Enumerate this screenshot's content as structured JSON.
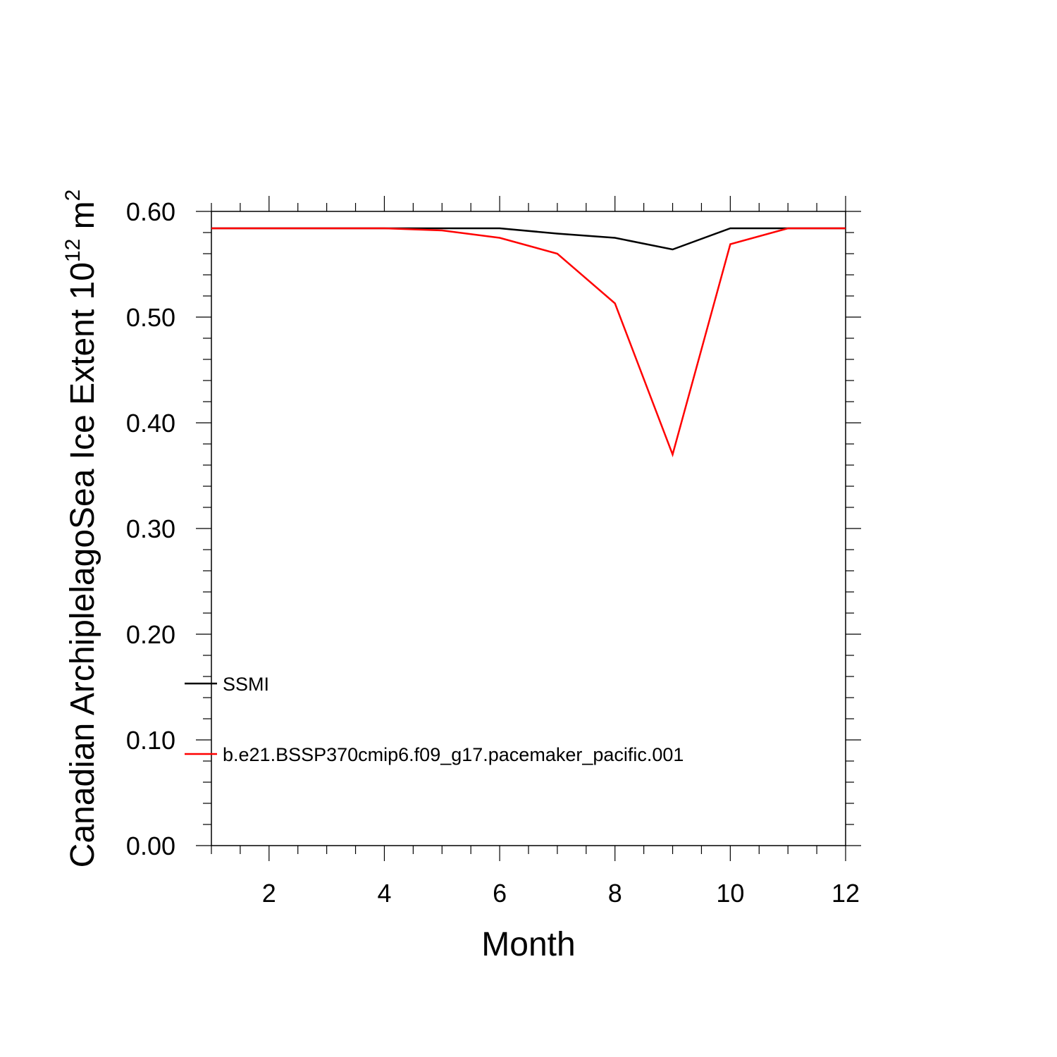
{
  "chart_data": {
    "type": "line",
    "xlabel": "Month",
    "ylabel": {
      "text": "Canadian ArchiplelagoSea Ice Extent 10",
      "exponent": "12",
      "unit": " m",
      "unit_exponent": "2"
    },
    "xlim": [
      1,
      12
    ],
    "ylim": [
      0,
      0.6
    ],
    "x_major_ticks": [
      2,
      4,
      6,
      8,
      10,
      12
    ],
    "x_tick_labels": [
      "2",
      "4",
      "6",
      "8",
      "10",
      "12"
    ],
    "y_major_ticks": [
      0,
      0.1,
      0.2,
      0.3,
      0.4,
      0.5,
      0.6
    ],
    "y_tick_labels": [
      "0.00",
      "0.10",
      "0.20",
      "0.30",
      "0.40",
      "0.50",
      "0.60"
    ],
    "grid": false,
    "legend_position": "bottom-left",
    "x": [
      1,
      2,
      3,
      4,
      5,
      6,
      7,
      8,
      9,
      10,
      11,
      12
    ],
    "series": [
      {
        "name": "SSMI",
        "color": "#000000",
        "values": [
          0.584,
          0.584,
          0.584,
          0.584,
          0.584,
          0.584,
          0.579,
          0.575,
          0.564,
          0.584,
          0.584,
          0.584
        ]
      },
      {
        "name": "b.e21.BSSP370cmip6.f09_g17.pacemaker_pacific.001",
        "color": "#ff0000",
        "values": [
          0.584,
          0.584,
          0.584,
          0.584,
          0.582,
          0.575,
          0.56,
          0.513,
          0.37,
          0.569,
          0.584,
          0.584
        ]
      }
    ]
  }
}
